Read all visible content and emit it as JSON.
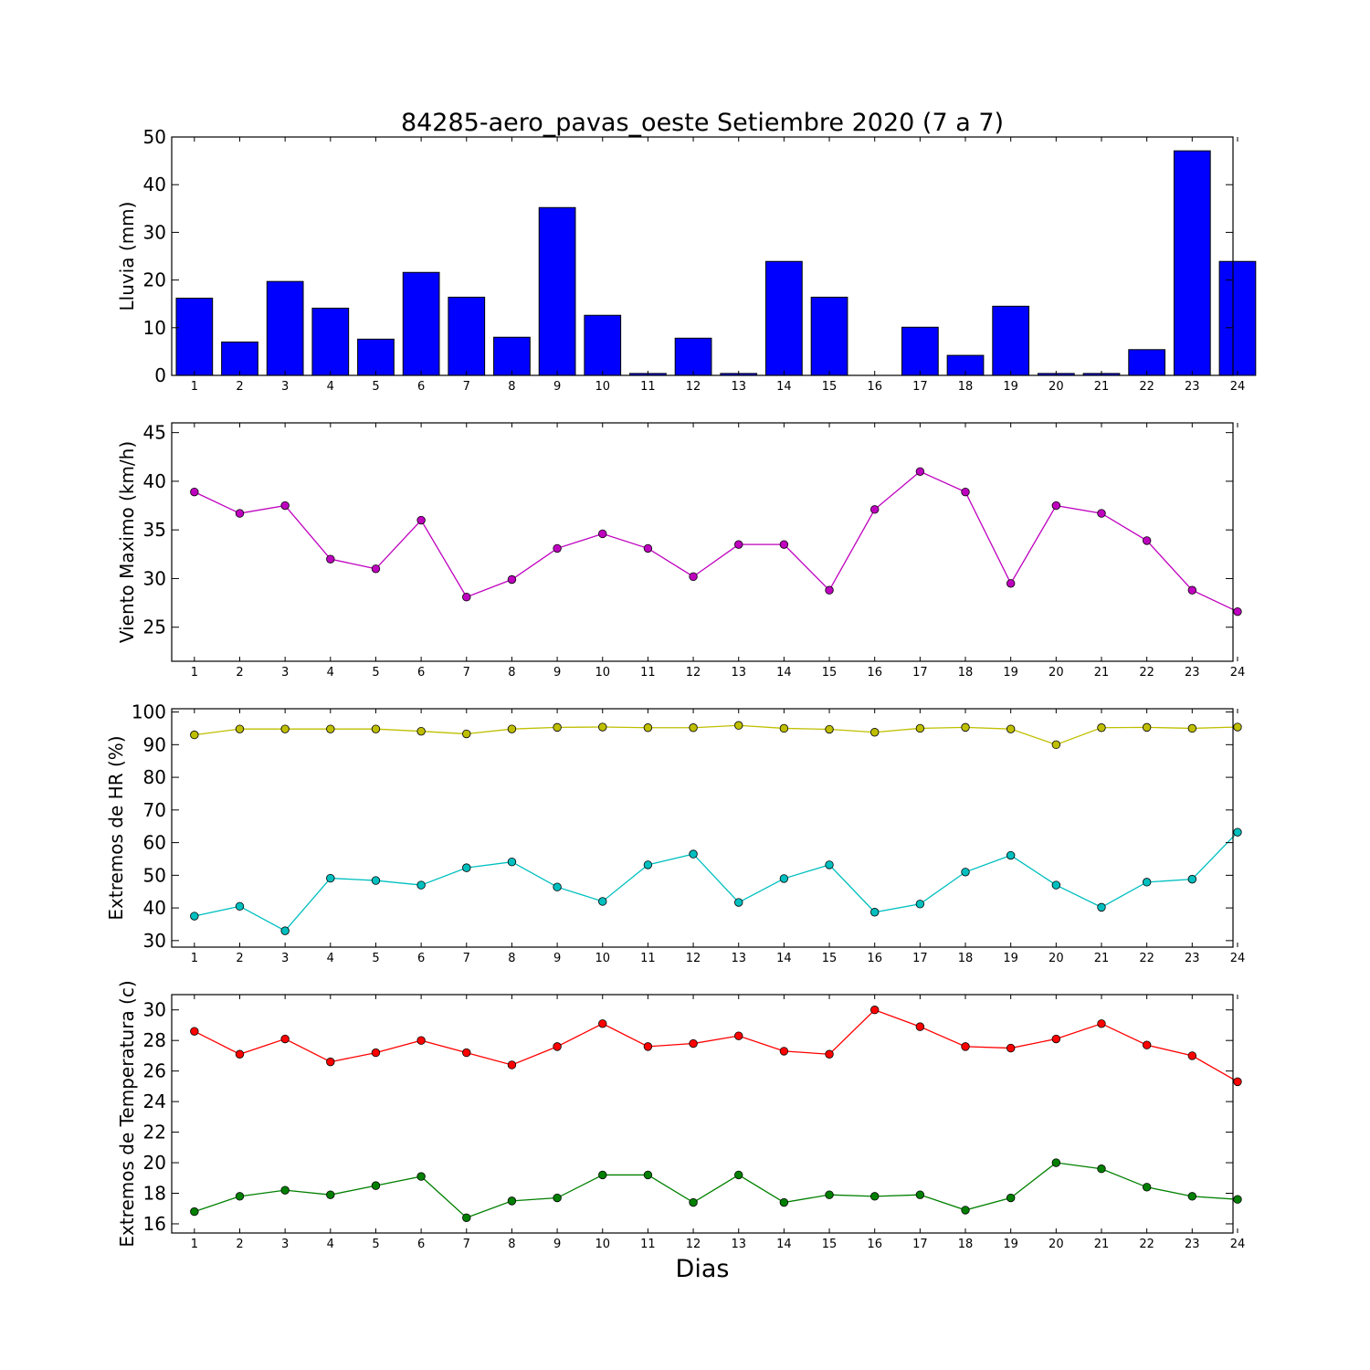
{
  "chart_data": [
    {
      "type": "bar",
      "title": "84285-aero_pavas_oeste Setiembre 2020  (7 a 7)",
      "xlabel": "",
      "ylabel": "Lluvia (mm)",
      "categories": [
        "1",
        "2",
        "3",
        "4",
        "5",
        "6",
        "7",
        "8",
        "9",
        "10",
        "11",
        "12",
        "13",
        "14",
        "15",
        "16",
        "17",
        "18",
        "19",
        "20",
        "21",
        "22",
        "23",
        "24"
      ],
      "values": [
        16.2,
        7.0,
        19.7,
        14.1,
        7.6,
        21.6,
        16.4,
        8.0,
        35.2,
        12.6,
        0.4,
        7.8,
        0.4,
        23.9,
        16.4,
        0.0,
        10.1,
        4.2,
        14.5,
        0.4,
        0.4,
        5.4,
        47.1,
        23.9
      ],
      "ylim": [
        0,
        50
      ],
      "yticks": [
        0,
        10,
        20,
        30,
        40,
        50
      ],
      "color": "#0000ff",
      "grid": false
    },
    {
      "type": "line",
      "ylabel": "Viento Maximo (km/h)",
      "x": [
        "1",
        "2",
        "3",
        "4",
        "5",
        "6",
        "7",
        "8",
        "9",
        "10",
        "11",
        "12",
        "13",
        "14",
        "15",
        "16",
        "17",
        "18",
        "19",
        "20",
        "21",
        "22",
        "23",
        "24"
      ],
      "series": [
        {
          "color": "#bf00bf",
          "values": [
            38.9,
            36.7,
            37.5,
            32.0,
            31.0,
            36.0,
            28.1,
            29.9,
            33.1,
            34.6,
            33.1,
            30.2,
            33.5,
            33.5,
            28.8,
            37.1,
            41.0,
            38.9,
            29.5,
            37.5,
            36.7,
            33.9,
            28.8,
            26.6
          ]
        }
      ],
      "ylim": [
        21.5,
        46
      ],
      "yticks": [
        25,
        30,
        35,
        40,
        45
      ],
      "grid": false
    },
    {
      "type": "line",
      "ylabel": "Extremos de HR (%)",
      "x": [
        "1",
        "2",
        "3",
        "4",
        "5",
        "6",
        "7",
        "8",
        "9",
        "10",
        "11",
        "12",
        "13",
        "14",
        "15",
        "16",
        "17",
        "18",
        "19",
        "20",
        "21",
        "22",
        "23",
        "24"
      ],
      "series": [
        {
          "color": "#bfbf00",
          "values": [
            93,
            94.8,
            94.8,
            94.8,
            94.8,
            94.1,
            93.3,
            94.8,
            95.3,
            95.4,
            95.2,
            95.2,
            95.9,
            95.0,
            94.7,
            93.8,
            95.0,
            95.3,
            94.8,
            90.0,
            95.2,
            95.3,
            95.0,
            95.4
          ]
        },
        {
          "color": "#00bfbf",
          "values": [
            37.5,
            40.5,
            33.0,
            49.1,
            48.4,
            47.0,
            52.3,
            54.1,
            46.4,
            42.0,
            53.2,
            56.5,
            41.7,
            49.0,
            53.2,
            38.7,
            41.2,
            51.0,
            56.1,
            47.0,
            40.2,
            47.9,
            48.8,
            63.2
          ]
        }
      ],
      "ylim": [
        28,
        101
      ],
      "yticks": [
        30,
        40,
        50,
        60,
        70,
        80,
        90,
        100
      ],
      "grid": false
    },
    {
      "type": "line",
      "ylabel": "Extremos de Temperatura (c)",
      "xlabel": "Dias",
      "x": [
        "1",
        "2",
        "3",
        "4",
        "5",
        "6",
        "7",
        "8",
        "9",
        "10",
        "11",
        "12",
        "13",
        "14",
        "15",
        "16",
        "17",
        "18",
        "19",
        "20",
        "21",
        "22",
        "23",
        "24"
      ],
      "series": [
        {
          "color": "#ff0000",
          "values": [
            28.6,
            27.1,
            28.1,
            26.6,
            27.2,
            28.0,
            27.2,
            26.4,
            27.6,
            29.1,
            27.6,
            27.8,
            28.3,
            27.3,
            27.1,
            30.0,
            28.9,
            27.6,
            27.5,
            28.1,
            29.1,
            27.7,
            27.0,
            25.3
          ]
        },
        {
          "color": "#008000",
          "values": [
            16.8,
            17.8,
            18.2,
            17.9,
            18.5,
            19.1,
            16.4,
            17.5,
            17.7,
            19.2,
            19.2,
            17.4,
            19.2,
            17.4,
            17.9,
            17.8,
            17.9,
            16.9,
            17.7,
            20.0,
            19.6,
            18.4,
            17.8,
            17.6
          ]
        }
      ],
      "ylim": [
        15.4,
        31
      ],
      "yticks": [
        16,
        18,
        20,
        22,
        24,
        26,
        28,
        30
      ],
      "grid": false
    }
  ]
}
